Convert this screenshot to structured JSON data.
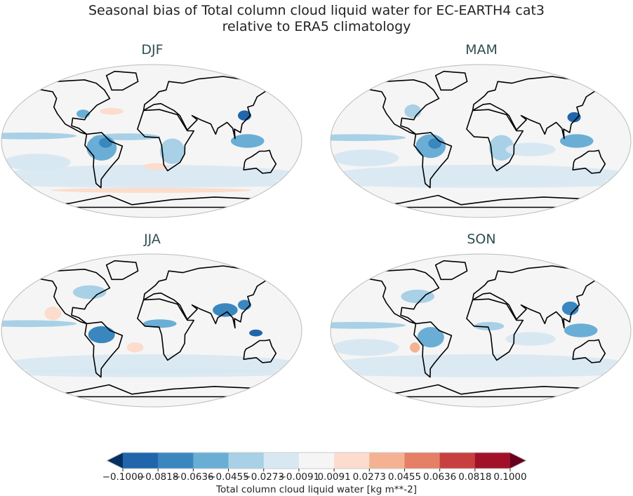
{
  "title_line1": "Seasonal bias of Total column cloud liquid water for EC-EARTH4 cat3",
  "title_line2": "relative to ERA5 climatology",
  "panels": [
    {
      "title": "DJF"
    },
    {
      "title": "MAM"
    },
    {
      "title": "JJA"
    },
    {
      "title": "SON"
    }
  ],
  "chart_data": {
    "type": "heatmap",
    "projection": "Robinson",
    "colorbar": {
      "label": "Total column cloud liquid water [kg m**-2]",
      "ticks": [
        "−0.1000",
        "−0.0818",
        "−0.0636",
        "−0.0455",
        "−0.0273",
        "−0.0091",
        "0.0091",
        "0.0273",
        "0.0455",
        "0.0636",
        "0.0818",
        "0.1000"
      ],
      "range": [
        -0.1,
        0.1
      ],
      "extend": "both",
      "colors": [
        "#053061",
        "#2166ac",
        "#3a87c0",
        "#6aaed6",
        "#a8d0e6",
        "#d8e8f2",
        "#f5f5f5",
        "#fcdccc",
        "#f5b293",
        "#e57f65",
        "#c7403f",
        "#a11228",
        "#67001f"
      ]
    },
    "features": {
      "DJF": [
        {
          "lon": -150,
          "lat": 6,
          "rlon": 60,
          "rlat": 4,
          "v": -0.04
        },
        {
          "lon": -30,
          "lat": 5,
          "rlon": 40,
          "rlat": 4,
          "v": -0.035
        },
        {
          "lon": -60,
          "lat": -8,
          "rlon": 18,
          "rlat": 15,
          "v": -0.06
        },
        {
          "lon": -55,
          "lat": -2,
          "rlon": 8,
          "rlat": 6,
          "v": -0.08
        },
        {
          "lon": 25,
          "lat": -12,
          "rlon": 15,
          "rlat": 15,
          "v": -0.045
        },
        {
          "lon": 115,
          "lat": 30,
          "rlon": 8,
          "rlat": 6,
          "v": -0.09
        },
        {
          "lon": 115,
          "lat": 0,
          "rlon": 20,
          "rlat": 8,
          "v": -0.05
        },
        {
          "lon": -85,
          "lat": 32,
          "rlon": 8,
          "rlat": 5,
          "v": -0.05
        },
        {
          "lon": -50,
          "lat": 35,
          "rlon": 14,
          "rlat": 4,
          "v": 0.02
        },
        {
          "lon": 5,
          "lat": -30,
          "rlon": 14,
          "rlat": 4,
          "v": 0.02
        },
        {
          "lon": 0,
          "lat": -58,
          "rlon": 120,
          "rlat": 3,
          "v": 0.02
        },
        {
          "lon": -140,
          "lat": -25,
          "rlon": 40,
          "rlat": 10,
          "v": -0.025
        }
      ],
      "MAM": [
        {
          "lon": -150,
          "lat": 4,
          "rlon": 60,
          "rlat": 4,
          "v": -0.035
        },
        {
          "lon": -60,
          "lat": -6,
          "rlon": 18,
          "rlat": 14,
          "v": -0.06
        },
        {
          "lon": -55,
          "lat": -3,
          "rlon": 8,
          "rlat": 6,
          "v": -0.08
        },
        {
          "lon": 25,
          "lat": -8,
          "rlon": 15,
          "rlat": 15,
          "v": -0.04
        },
        {
          "lon": 115,
          "lat": 28,
          "rlon": 8,
          "rlat": 6,
          "v": -0.09
        },
        {
          "lon": 115,
          "lat": 0,
          "rlon": 20,
          "rlat": 8,
          "v": -0.05
        },
        {
          "lon": -85,
          "lat": 35,
          "rlon": 10,
          "rlat": 8,
          "v": -0.04
        },
        {
          "lon": -140,
          "lat": -20,
          "rlon": 40,
          "rlat": 10,
          "v": -0.025
        },
        {
          "lon": 60,
          "lat": -10,
          "rlon": 30,
          "rlat": 8,
          "v": -0.025
        }
      ],
      "JJA": [
        {
          "lon": -150,
          "lat": 8,
          "rlon": 60,
          "rlat": 4,
          "v": -0.04
        },
        {
          "lon": -60,
          "lat": -5,
          "rlon": 16,
          "rlat": 10,
          "v": -0.07
        },
        {
          "lon": 10,
          "lat": 8,
          "rlon": 20,
          "rlat": 5,
          "v": -0.06
        },
        {
          "lon": 90,
          "lat": 24,
          "rlon": 15,
          "rlat": 8,
          "v": -0.08
        },
        {
          "lon": 115,
          "lat": 30,
          "rlon": 8,
          "rlat": 6,
          "v": -0.07
        },
        {
          "lon": 125,
          "lat": -3,
          "rlon": 8,
          "rlat": 4,
          "v": -0.09
        },
        {
          "lon": -80,
          "lat": 45,
          "rlon": 20,
          "rlat": 8,
          "v": -0.03
        },
        {
          "lon": -120,
          "lat": 20,
          "rlon": 10,
          "rlat": 8,
          "v": 0.02
        },
        {
          "lon": -20,
          "lat": -20,
          "rlon": 10,
          "rlat": 6,
          "v": 0.02
        },
        {
          "lon": 0,
          "lat": -48,
          "rlon": 140,
          "rlat": 3,
          "v": -0.02
        }
      ],
      "SON": [
        {
          "lon": -150,
          "lat": 6,
          "rlon": 60,
          "rlat": 4,
          "v": -0.035
        },
        {
          "lon": -60,
          "lat": -8,
          "rlon": 16,
          "rlat": 12,
          "v": -0.05
        },
        {
          "lon": 10,
          "lat": 5,
          "rlon": 18,
          "rlat": 5,
          "v": -0.04
        },
        {
          "lon": 110,
          "lat": 26,
          "rlon": 10,
          "rlat": 8,
          "v": -0.08
        },
        {
          "lon": 120,
          "lat": 0,
          "rlon": 20,
          "rlat": 8,
          "v": -0.06
        },
        {
          "lon": -80,
          "lat": -20,
          "rlon": 6,
          "rlat": 6,
          "v": 0.04
        },
        {
          "lon": -80,
          "lat": 40,
          "rlon": 20,
          "rlat": 8,
          "v": -0.035
        },
        {
          "lon": -140,
          "lat": -20,
          "rlon": 40,
          "rlat": 10,
          "v": -0.02
        },
        {
          "lon": 60,
          "lat": -10,
          "rlon": 30,
          "rlat": 8,
          "v": -0.025
        }
      ]
    }
  }
}
